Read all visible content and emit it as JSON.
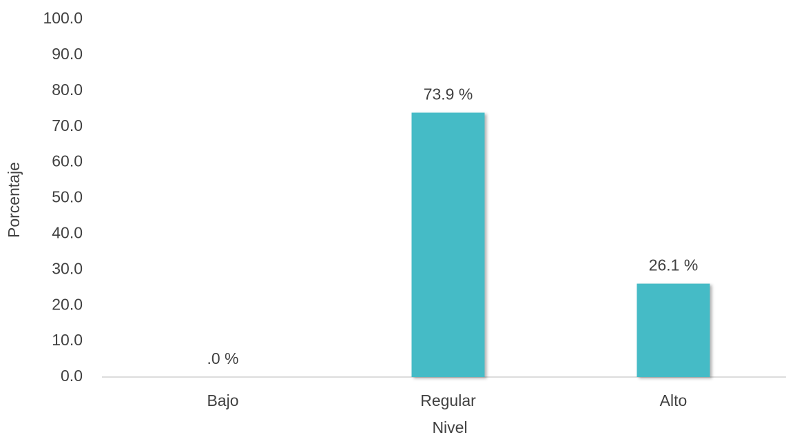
{
  "chart_data": {
    "type": "bar",
    "x_label": "Nivel",
    "y_label": "Porcentaje",
    "categories": [
      "Bajo",
      "Regular",
      "Alto"
    ],
    "values": [
      0,
      73.9,
      26.1
    ],
    "value_labels": [
      ".0 %",
      "73.9 %",
      "26.1 %"
    ],
    "color": "#45bbc6",
    "ylim": [
      0,
      100
    ],
    "yticks": [
      {
        "value": 0,
        "label": "0.0"
      },
      {
        "value": 10,
        "label": "10.0"
      },
      {
        "value": 20,
        "label": "20.0"
      },
      {
        "value": 30,
        "label": "30.0"
      },
      {
        "value": 40,
        "label": "40.0"
      },
      {
        "value": 50,
        "label": "50.0"
      },
      {
        "value": 60,
        "label": "60.0"
      },
      {
        "value": 70,
        "label": "70.0"
      },
      {
        "value": 80,
        "label": "80.0"
      },
      {
        "value": 90,
        "label": "90.0"
      },
      {
        "value": 100,
        "label": "100.0"
      }
    ],
    "grid": false
  }
}
